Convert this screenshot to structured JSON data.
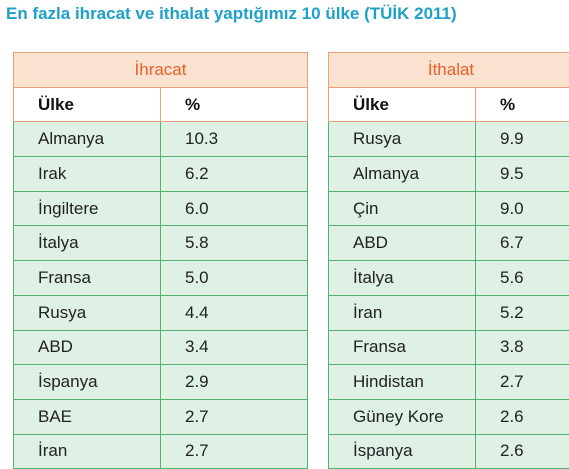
{
  "title": "En fazla ihracat ve ithalat yaptığımız 10 ülke (TÜİK 2011)",
  "exports": {
    "heading": "İhracat",
    "col_country": "Ülke",
    "col_percent": "%",
    "rows": [
      {
        "country": "Almanya",
        "percent": "10.3"
      },
      {
        "country": "Irak",
        "percent": "6.2"
      },
      {
        "country": "İngiltere",
        "percent": "6.0"
      },
      {
        "country": "İtalya",
        "percent": "5.8"
      },
      {
        "country": "Fransa",
        "percent": "5.0"
      },
      {
        "country": "Rusya",
        "percent": "4.4"
      },
      {
        "country": "ABD",
        "percent": "3.4"
      },
      {
        "country": "İspanya",
        "percent": "2.9"
      },
      {
        "country": "BAE",
        "percent": "2.7"
      },
      {
        "country": "İran",
        "percent": "2.7"
      }
    ]
  },
  "imports": {
    "heading": "İthalat",
    "col_country": "Ülke",
    "col_percent": "%",
    "rows": [
      {
        "country": "Rusya",
        "percent": "9.9"
      },
      {
        "country": "Almanya",
        "percent": "9.5"
      },
      {
        "country": "Çin",
        "percent": "9.0"
      },
      {
        "country": "ABD",
        "percent": "6.7"
      },
      {
        "country": "İtalya",
        "percent": "5.6"
      },
      {
        "country": "İran",
        "percent": "5.2"
      },
      {
        "country": "Fransa",
        "percent": "3.8"
      },
      {
        "country": "Hindistan",
        "percent": "2.7"
      },
      {
        "country": "Güney Kore",
        "percent": "2.6"
      },
      {
        "country": "İspanya",
        "percent": "2.6"
      }
    ]
  }
}
